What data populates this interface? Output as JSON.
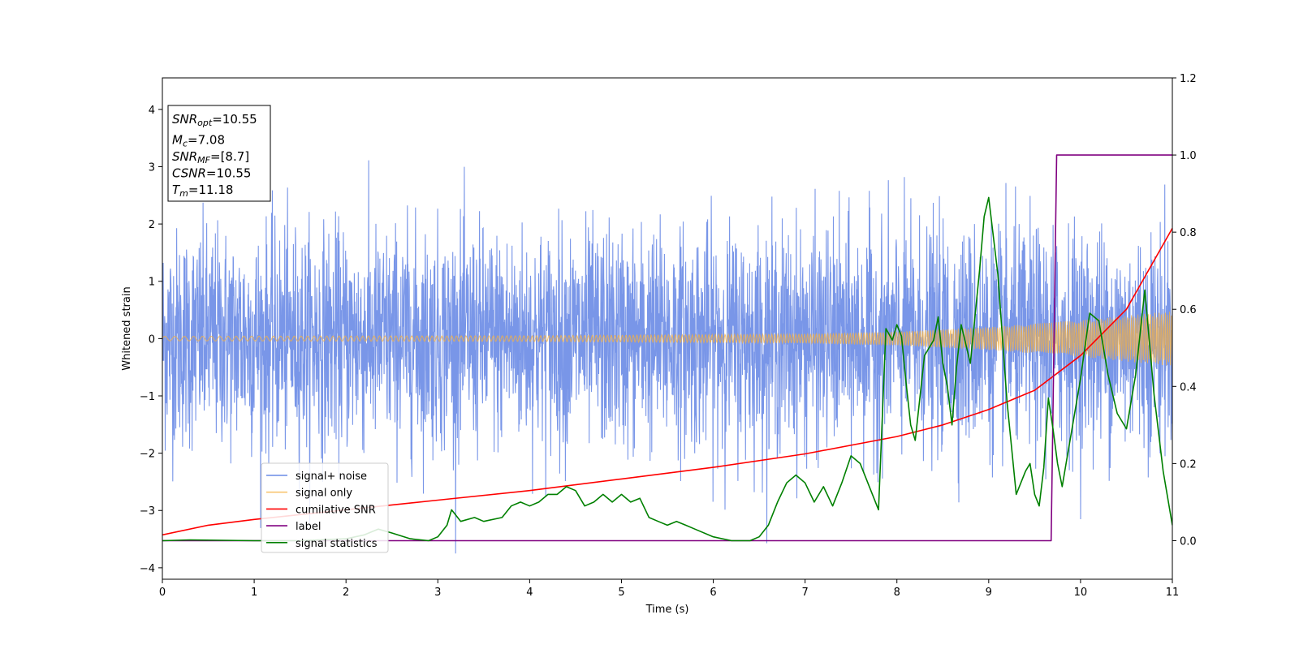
{
  "chart_data": {
    "type": "line",
    "title": "",
    "xlabel": "Time (s)",
    "ylabel": "Whitened strain",
    "xlim": [
      0,
      11
    ],
    "ylim": [
      -4.2,
      4.55
    ],
    "y2lim": [
      -0.1,
      1.2
    ],
    "x_ticks": [
      0,
      1,
      2,
      3,
      4,
      5,
      6,
      7,
      8,
      9,
      10,
      11
    ],
    "y_ticks": [
      -4,
      -3,
      -2,
      -1,
      0,
      1,
      2,
      3,
      4
    ],
    "y2_ticks": [
      0.0,
      0.2,
      0.4,
      0.6,
      0.8,
      1.0,
      1.2
    ],
    "grid": false,
    "legend_position": "lower-left",
    "annotation_lines": [
      {
        "name": "SNR",
        "sub": "opt",
        "value": "=10.55"
      },
      {
        "name": "M",
        "sub": "c",
        "value": "=7.08"
      },
      {
        "name": "SNR",
        "sub": "MF",
        "value": "=[8.7]"
      },
      {
        "name": "CSNR",
        "sub": "",
        "value": "=10.55"
      },
      {
        "name": "T",
        "sub": "m",
        "value": "=11.18"
      }
    ],
    "series": [
      {
        "name": "signal+ noise",
        "axis": "left",
        "color": "#6A8BE6",
        "description_values": {
          "noise_std": 0.95,
          "amplitude_peak": 3.5
        }
      },
      {
        "name": "signal only",
        "axis": "left",
        "color": "#F5B041",
        "amplitude_envelope": {
          "x": [
            0,
            4,
            7,
            8,
            9,
            10,
            11
          ],
          "y": [
            0.04,
            0.05,
            0.08,
            0.12,
            0.2,
            0.32,
            0.48
          ]
        }
      },
      {
        "name": "cumilative SNR",
        "axis": "right",
        "color": "#FF0000",
        "x": [
          0,
          0.5,
          1,
          2,
          3,
          4,
          5,
          6,
          7,
          8,
          8.5,
          9,
          9.5,
          10,
          10.5,
          11
        ],
        "y": [
          0.015,
          0.04,
          0.055,
          0.08,
          0.105,
          0.13,
          0.16,
          0.19,
          0.225,
          0.27,
          0.3,
          0.34,
          0.39,
          0.48,
          0.6,
          0.81
        ]
      },
      {
        "name": "label",
        "axis": "right",
        "color": "#800080",
        "x": [
          0,
          9.68,
          9.74,
          11
        ],
        "y": [
          0.0,
          0.0,
          1.0,
          1.0
        ]
      },
      {
        "name": "signal statistics",
        "axis": "right",
        "color": "#008000",
        "x": [
          0,
          0.3,
          1,
          1.5,
          2,
          2.2,
          2.35,
          2.5,
          2.7,
          2.9,
          3.0,
          3.1,
          3.15,
          3.25,
          3.4,
          3.5,
          3.7,
          3.8,
          3.9,
          4.0,
          4.1,
          4.2,
          4.3,
          4.4,
          4.5,
          4.6,
          4.7,
          4.8,
          4.9,
          5.0,
          5.1,
          5.2,
          5.3,
          5.4,
          5.5,
          5.6,
          5.7,
          5.8,
          6.0,
          6.2,
          6.4,
          6.5,
          6.6,
          6.7,
          6.8,
          6.9,
          7.0,
          7.1,
          7.2,
          7.3,
          7.4,
          7.5,
          7.6,
          7.7,
          7.8,
          7.88,
          7.95,
          8.0,
          8.05,
          8.1,
          8.15,
          8.2,
          8.3,
          8.4,
          8.45,
          8.5,
          8.55,
          8.6,
          8.65,
          8.7,
          8.8,
          8.9,
          8.95,
          9.0,
          9.1,
          9.2,
          9.3,
          9.4,
          9.45,
          9.5,
          9.55,
          9.6,
          9.65,
          9.7,
          9.75,
          9.8,
          9.85,
          9.9,
          10.0,
          10.1,
          10.2,
          10.3,
          10.4,
          10.5,
          10.6,
          10.7,
          10.8,
          10.9,
          11.0
        ],
        "y": [
          0.0,
          0.002,
          0.0,
          0.0,
          0.005,
          0.015,
          0.03,
          0.02,
          0.005,
          0.0,
          0.01,
          0.04,
          0.08,
          0.05,
          0.06,
          0.05,
          0.06,
          0.09,
          0.1,
          0.09,
          0.1,
          0.12,
          0.12,
          0.14,
          0.13,
          0.09,
          0.1,
          0.12,
          0.1,
          0.12,
          0.1,
          0.11,
          0.06,
          0.05,
          0.04,
          0.05,
          0.04,
          0.03,
          0.01,
          0.0,
          0.0,
          0.01,
          0.04,
          0.1,
          0.15,
          0.17,
          0.15,
          0.1,
          0.14,
          0.09,
          0.15,
          0.22,
          0.2,
          0.14,
          0.08,
          0.55,
          0.52,
          0.56,
          0.53,
          0.41,
          0.3,
          0.26,
          0.48,
          0.52,
          0.58,
          0.46,
          0.4,
          0.3,
          0.45,
          0.56,
          0.46,
          0.7,
          0.84,
          0.89,
          0.69,
          0.36,
          0.12,
          0.18,
          0.2,
          0.12,
          0.09,
          0.19,
          0.37,
          0.29,
          0.2,
          0.14,
          0.21,
          0.28,
          0.42,
          0.59,
          0.57,
          0.43,
          0.33,
          0.29,
          0.43,
          0.65,
          0.38,
          0.18,
          0.04
        ]
      }
    ]
  }
}
